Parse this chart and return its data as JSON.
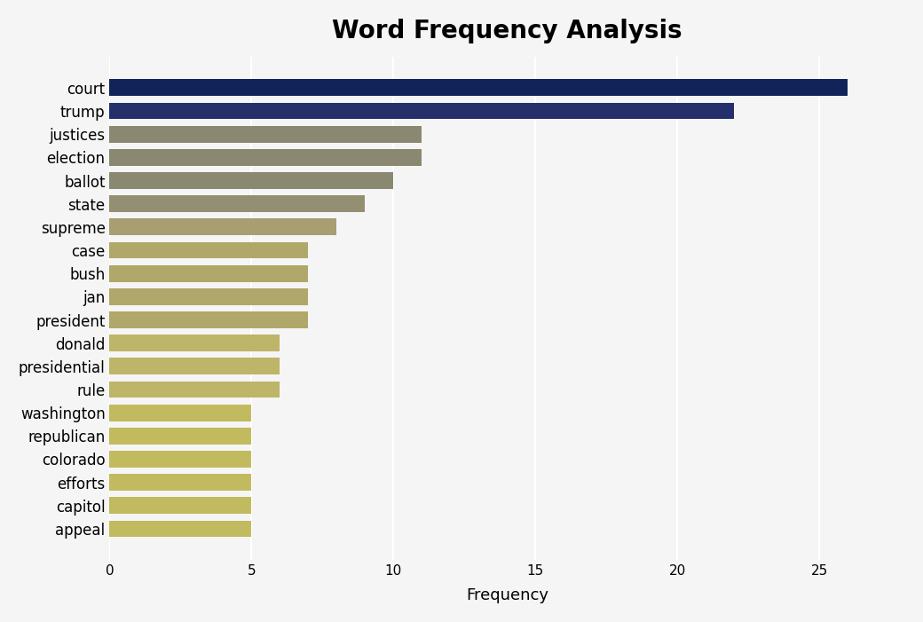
{
  "title": "Word Frequency Analysis",
  "title_fontsize": 20,
  "xlabel": "Frequency",
  "xlabel_fontsize": 13,
  "categories": [
    "court",
    "trump",
    "justices",
    "election",
    "ballot",
    "state",
    "supreme",
    "case",
    "bush",
    "jan",
    "president",
    "donald",
    "presidential",
    "rule",
    "washington",
    "republican",
    "colorado",
    "efforts",
    "capitol",
    "appeal"
  ],
  "values": [
    26,
    22,
    11,
    11,
    10,
    9,
    8,
    7,
    7,
    7,
    7,
    6,
    6,
    6,
    5,
    5,
    5,
    5,
    5,
    5
  ],
  "bar_colors": [
    "#12235a",
    "#252f6b",
    "#8a8870",
    "#8a8870",
    "#8a8870",
    "#938f72",
    "#a89e72",
    "#b0a86a",
    "#b0a86a",
    "#b0a86a",
    "#b0a86a",
    "#bdb568",
    "#bdb568",
    "#bdb568",
    "#c2ba5e",
    "#c2ba5e",
    "#c2ba5e",
    "#c2ba5e",
    "#c2ba5e",
    "#c2ba5e"
  ],
  "background_color": "#f5f5f5",
  "xlim": [
    0,
    28
  ],
  "xticks": [
    0,
    5,
    10,
    15,
    20,
    25
  ]
}
